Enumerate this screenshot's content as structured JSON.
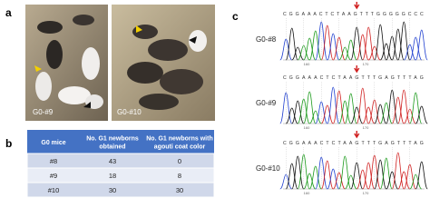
{
  "panels": {
    "a": "a",
    "b": "b",
    "c": "c"
  },
  "photos": [
    {
      "label": "G0-#9"
    },
    {
      "label": "G0-#10"
    }
  ],
  "table": {
    "header": [
      "G0 mice",
      "No. G1 newborns obtained",
      "No. G1 newborns with agouti coat color"
    ],
    "rows": [
      [
        "#8",
        "43",
        "0"
      ],
      [
        "#9",
        "18",
        "8"
      ],
      [
        "#10",
        "30",
        "30"
      ]
    ]
  },
  "chromatograms": [
    {
      "label": "G0-#8",
      "sequence": "CGGAAACTCTAAGTTTGGGGGCCC",
      "positions": [
        "160",
        "170"
      ]
    },
    {
      "label": "G0-#9",
      "sequence": "CGGAAACTCTAAGTTTGAGTTTAG",
      "positions": [
        "160",
        "170"
      ]
    },
    {
      "label": "G0-#10",
      "sequence": "CGGAAACTCTAAGTTTGAGTTTAG",
      "positions": [
        "160",
        "170"
      ]
    }
  ]
}
